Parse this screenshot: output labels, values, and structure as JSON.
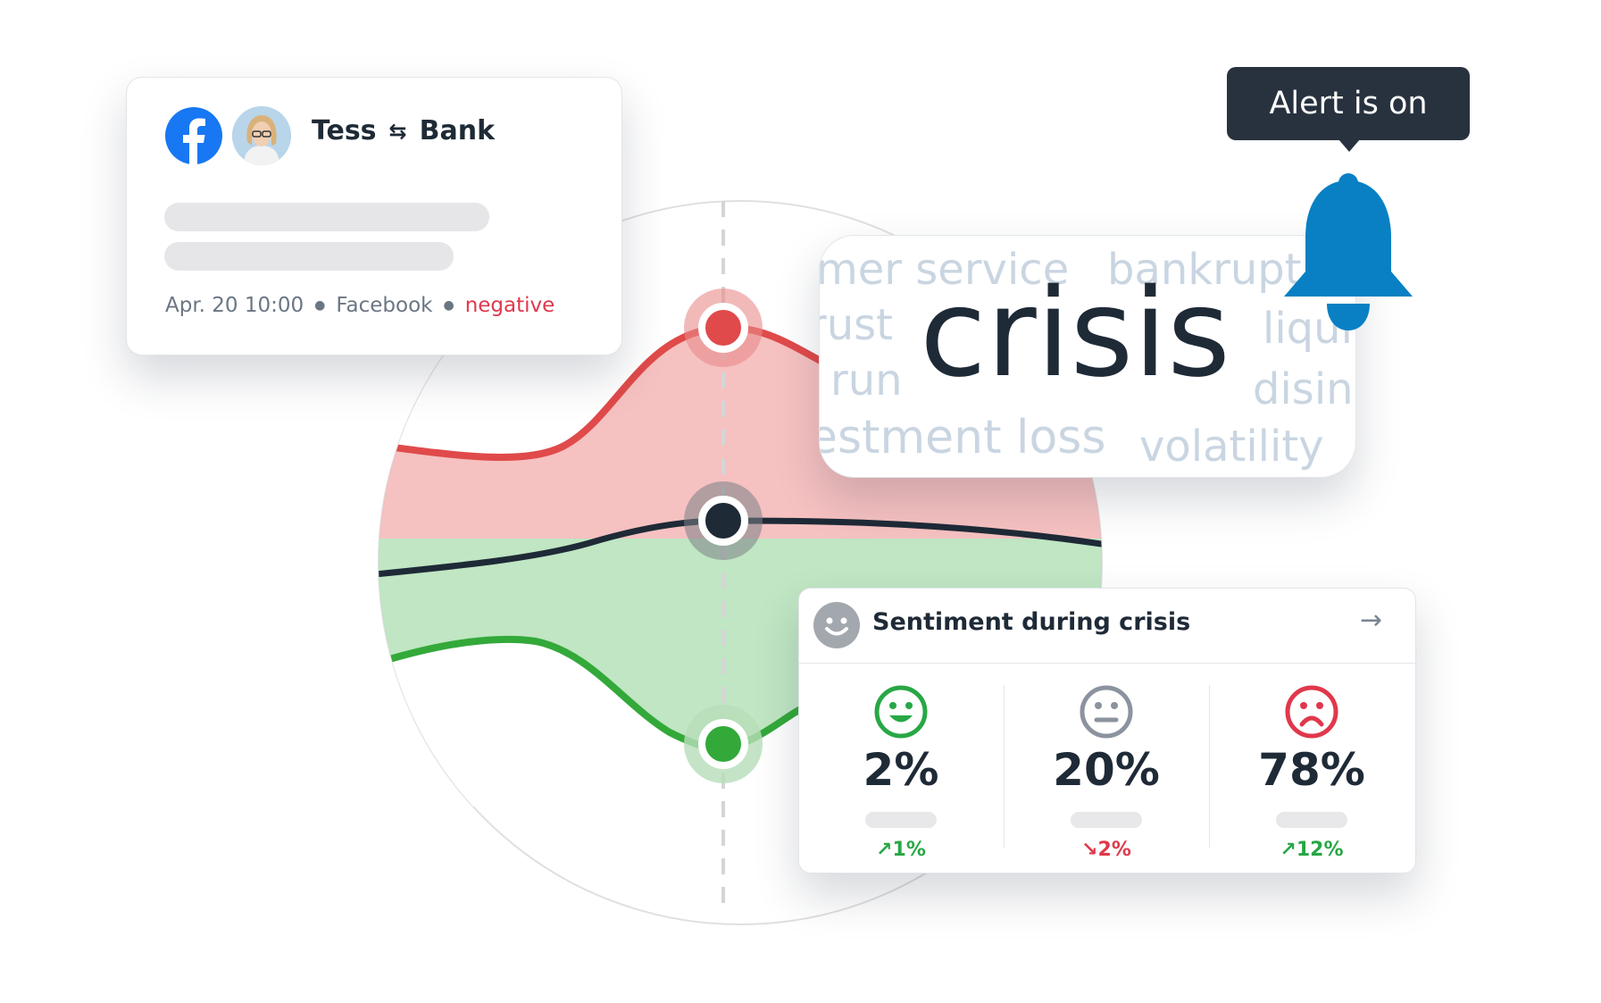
{
  "post_card": {
    "author": "Tess",
    "target": "Bank",
    "swap_icon": "⇆",
    "timestamp": "Apr. 20 10:00",
    "source": "Facebook",
    "sentiment_label": "negative",
    "sentiment_color": "#e0384b",
    "network_icon": "facebook-icon"
  },
  "word_cloud": {
    "main_word": "crisis",
    "words": [
      "mer service",
      "bankrupt",
      "rust",
      "liqui",
      "run",
      "disin",
      "estment loss",
      "volatility"
    ]
  },
  "alert": {
    "label": "Alert is on",
    "icon": "bell-icon",
    "color": "#0880c3"
  },
  "sentiment_panel": {
    "title": "Sentiment during crisis",
    "columns": [
      {
        "face": "happy-face-icon",
        "value": "2%",
        "change": "1%",
        "direction": "up",
        "color": "#28a745"
      },
      {
        "face": "neutral-face-icon",
        "value": "20%",
        "change": "2%",
        "direction": "down",
        "color": "#8a939e"
      },
      {
        "face": "sad-face-icon",
        "value": "78%",
        "change": "12%",
        "direction": "up",
        "color": "#e0384b"
      }
    ]
  },
  "chart_data": {
    "type": "area",
    "series": [
      {
        "color": "#e04a4a",
        "values": [
          0.3,
          0.32,
          0.58,
          0.68,
          0.58,
          0.4
        ]
      },
      {
        "color": "#1f2a37",
        "values": [
          -0.1,
          -0.05,
          0.05,
          0.08,
          0.08,
          0.05
        ]
      },
      {
        "color": "#33a93a",
        "values": [
          -0.45,
          -0.4,
          -0.55,
          -0.75,
          -0.6,
          -0.5
        ]
      }
    ],
    "colors": {
      "negative_fill": "#f4b6b6",
      "positive_fill": "#b9e3bc"
    }
  }
}
